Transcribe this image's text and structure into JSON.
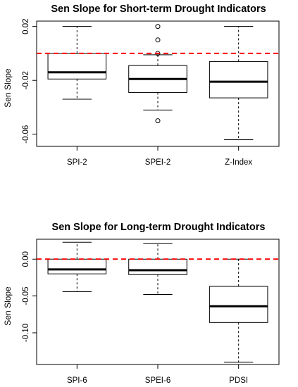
{
  "chart_data": [
    {
      "type": "boxplot",
      "title": "Sen Slope for Short-term Drought Indicators",
      "xlabel": "",
      "ylabel": "Sen Slope",
      "ylim": [
        -0.069,
        0.024
      ],
      "yticks": [
        0.02,
        -0.02,
        -0.06
      ],
      "ytick_labels": [
        "0.02",
        "-0.02",
        "-0.06"
      ],
      "reference_line": {
        "y": 0.0,
        "style": "dashed",
        "color": "#ff0000"
      },
      "categories": [
        "SPI-2",
        "SPEI-2",
        "Z-Index"
      ],
      "boxes": [
        {
          "name": "SPI-2",
          "whisker_low": -0.034,
          "q1": -0.019,
          "median": -0.014,
          "q3": 0.0,
          "whisker_high": 0.02,
          "outliers": []
        },
        {
          "name": "SPEI-2",
          "whisker_low": -0.042,
          "q1": -0.029,
          "median": -0.019,
          "q3": -0.009,
          "whisker_high": -0.001,
          "outliers": [
            0.02,
            0.01,
            0.0,
            -0.05
          ]
        },
        {
          "name": "Z-Index",
          "whisker_low": -0.064,
          "q1": -0.033,
          "median": -0.021,
          "q3": -0.006,
          "whisker_high": 0.02,
          "outliers": []
        }
      ]
    },
    {
      "type": "boxplot",
      "title": "Sen Slope for Long-term Drought Indicators",
      "xlabel": "",
      "ylabel": "Sen Slope",
      "ylim": [
        -0.143,
        0.027
      ],
      "yticks": [
        0.0,
        -0.05,
        -0.1
      ],
      "ytick_labels": [
        "0.00",
        "-0.05",
        "-0.10"
      ],
      "reference_line": {
        "y": 0.0,
        "style": "dashed",
        "color": "#ff0000"
      },
      "categories": [
        "SPI-6",
        "SPEI-6",
        "PDSI"
      ],
      "boxes": [
        {
          "name": "SPI-6",
          "whisker_low": -0.044,
          "q1": -0.02,
          "median": -0.014,
          "q3": 0.0,
          "whisker_high": 0.023,
          "outliers": []
        },
        {
          "name": "SPEI-6",
          "whisker_low": -0.048,
          "q1": -0.021,
          "median": -0.015,
          "q3": 0.0,
          "whisker_high": 0.021,
          "outliers": []
        },
        {
          "name": "PDSI",
          "whisker_low": -0.14,
          "q1": -0.086,
          "median": -0.064,
          "q3": -0.037,
          "whisker_high": 0.0,
          "outliers": []
        }
      ]
    }
  ]
}
